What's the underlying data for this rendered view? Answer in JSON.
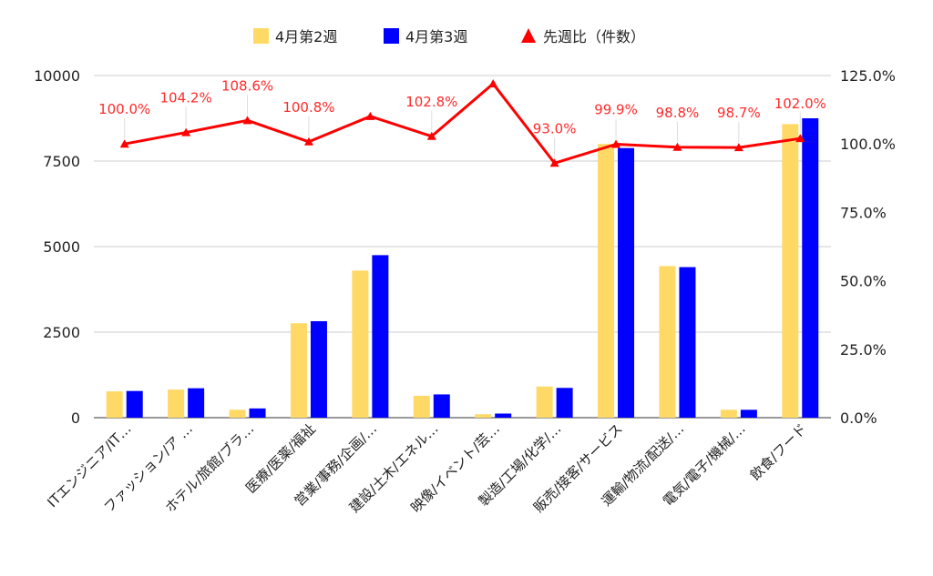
{
  "chart_data": {
    "type": "bar",
    "title": "",
    "legend_position": "top",
    "grid": true,
    "categories": [
      "ITエンジニア/IT…",
      "ファッション/ア …",
      "ホテル/旅館/ブラ…",
      "医療/医薬/福祉",
      "営業/事務/企画/…",
      "建設/土木/エネル…",
      "映像/イベント/芸…",
      "製造/工場/化学/…",
      "販売/接客/サービス",
      "運輸/物流/配送/…",
      "電気/電子/機械/…",
      "飲食/フード"
    ],
    "series": [
      {
        "name": "4月第2週",
        "type": "bar",
        "axis": "left",
        "color": "#ffd966",
        "values": [
          770,
          820,
          230,
          2760,
          4300,
          640,
          100,
          910,
          8000,
          4430,
          230,
          8580
        ]
      },
      {
        "name": "4月第3週",
        "type": "bar",
        "axis": "left",
        "color": "#0000ff",
        "values": [
          780,
          860,
          270,
          2820,
          4750,
          680,
          120,
          870,
          7880,
          4400,
          230,
          8750
        ]
      },
      {
        "name": "先週比（件数）",
        "type": "line",
        "axis": "right",
        "color": "#ff0000",
        "marker": "triangle",
        "values": [
          100.0,
          104.2,
          108.6,
          100.8,
          110.1,
          102.8,
          122.0,
          93.0,
          99.9,
          98.8,
          98.7,
          102.0
        ],
        "labels": [
          "100.0%",
          "104.2%",
          "108.6%",
          "100.8%",
          "",
          "102.8%",
          "",
          "93.0%",
          "99.9%",
          "98.8%",
          "98.7%",
          "102.0%"
        ]
      }
    ],
    "y_left": {
      "min": 0,
      "max": 10000,
      "ticks": [
        "0",
        "2500",
        "5000",
        "7500",
        "10000"
      ]
    },
    "y_right": {
      "min": 0,
      "max": 125,
      "ticks": [
        "0.0%",
        "25.0%",
        "50.0%",
        "75.0%",
        "100.0%",
        "125.0%"
      ]
    }
  }
}
